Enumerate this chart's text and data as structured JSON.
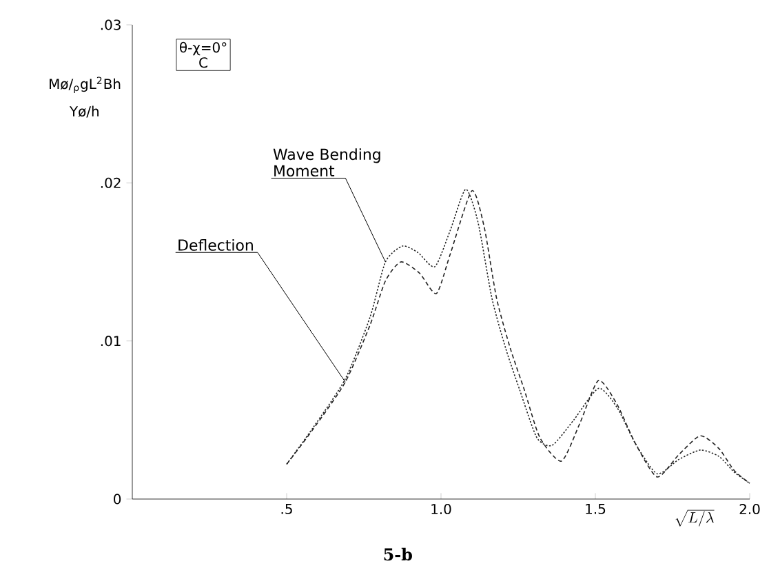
{
  "chart_data": {
    "type": "line",
    "title": "5-b",
    "xlabel": "\\sqrt{L/\\lambda}",
    "ylabel": "Mø/$_{ρ}$gL$^{2}$Bh",
    "xlim": [
      0,
      2.0
    ],
    "ylim": [
      0,
      0.03
    ],
    "xticks": [
      {
        "value": 0.5,
        "label": ".5"
      },
      {
        "value": 1.0,
        "label": "1.0"
      },
      {
        "value": 1.5,
        "label": "1.5"
      },
      {
        "value": 2.0,
        "label": "2.0"
      }
    ],
    "yticks": [
      0,
      {
        "value": 0.01,
        "label": ".01"
      },
      {
        "value": 0.02,
        "label": ".02"
      },
      {
        "value": 0.03,
        "label": ".03"
      }
    ],
    "grid": false,
    "legend": false,
    "marker": "none",
    "series": [
      {
        "name": "Wave Bending Moment",
        "color": "#222222",
        "line_style": "dotted",
        "x": [
          0.5,
          0.585,
          0.69,
          0.77,
          0.82,
          0.875,
          0.925,
          0.98,
          1.03,
          1.08,
          1.12,
          1.165,
          1.21,
          1.255,
          1.31,
          1.36,
          1.43,
          1.51,
          1.57,
          1.63,
          1.7,
          1.77,
          1.84,
          1.9,
          1.95,
          2.0
        ],
        "values": [
          0.0022,
          0.0045,
          0.0076,
          0.0115,
          0.015,
          0.016,
          0.0156,
          0.0147,
          0.017,
          0.0196,
          0.0175,
          0.0127,
          0.0095,
          0.0069,
          0.0039,
          0.0034,
          0.005,
          0.007,
          0.0058,
          0.0035,
          0.0016,
          0.0025,
          0.0031,
          0.0027,
          0.0017,
          0.001
        ]
      },
      {
        "name": "Deflection",
        "color": "#222222",
        "line_style": "dashed",
        "x": [
          0.5,
          0.585,
          0.69,
          0.77,
          0.82,
          0.87,
          0.93,
          0.985,
          1.03,
          1.1,
          1.14,
          1.18,
          1.225,
          1.27,
          1.32,
          1.39,
          1.45,
          1.51,
          1.57,
          1.63,
          1.7,
          1.77,
          1.84,
          1.9,
          1.95,
          2.0
        ],
        "values": [
          0.0022,
          0.0044,
          0.0074,
          0.011,
          0.0138,
          0.015,
          0.0143,
          0.013,
          0.0155,
          0.0195,
          0.0172,
          0.0127,
          0.0095,
          0.0069,
          0.0039,
          0.0024,
          0.0048,
          0.0075,
          0.006,
          0.0035,
          0.0014,
          0.0028,
          0.004,
          0.0032,
          0.0018,
          0.001
        ]
      }
    ],
    "annotations": [
      "θ-χ=0°",
      "C",
      "Yø/h"
    ]
  }
}
